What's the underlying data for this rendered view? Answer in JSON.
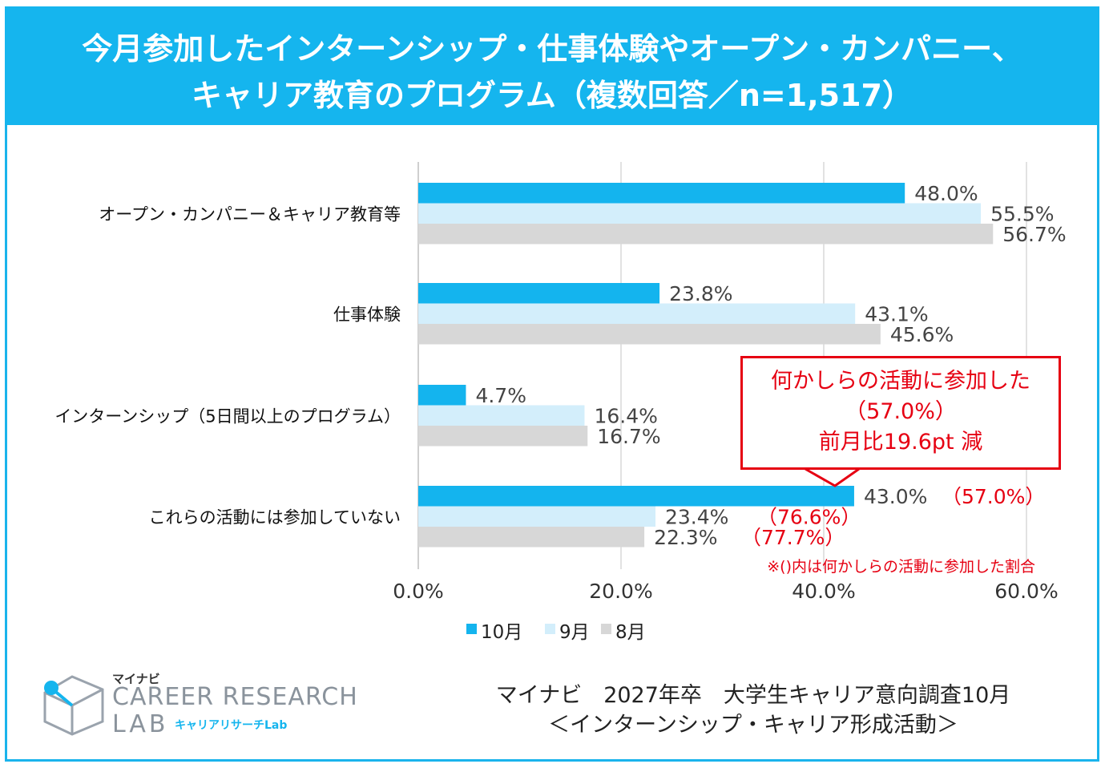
{
  "title": {
    "line1": "今月参加したインターンシップ・仕事体験やオープン・カンパニー、",
    "line2": "キャリア教育のプログラム（複数回答／n=1,517）"
  },
  "chart_data": {
    "type": "bar",
    "orientation": "horizontal",
    "categories": [
      "オープン・カンパニー＆キャリア教育等",
      "仕事体験",
      "インターンシップ（5日間以上のプログラム）",
      "これらの活動には参加していない"
    ],
    "series": [
      {
        "name": "10月",
        "color": "#14b4ee",
        "values": [
          48.0,
          23.8,
          4.7,
          43.0
        ],
        "labels": [
          "48.0%",
          "23.8%",
          "4.7%",
          "43.0%"
        ]
      },
      {
        "name": "9月",
        "color": "#d3eefb",
        "values": [
          55.5,
          43.1,
          16.4,
          23.4
        ],
        "labels": [
          "55.5%",
          "43.1%",
          "16.4%",
          "23.4%"
        ]
      },
      {
        "name": "8月",
        "color": "#d7d7d7",
        "values": [
          56.7,
          45.6,
          16.7,
          22.3
        ],
        "labels": [
          "56.7%",
          "45.6%",
          "16.7%",
          "22.3%"
        ]
      }
    ],
    "xlim": [
      0,
      60
    ],
    "xticks": [
      "0.0%",
      "20.0%",
      "40.0%",
      "60.0%"
    ],
    "grid": true,
    "legend": "bottom",
    "annotations": {
      "participated": [
        "（57.0%）",
        "（76.6%）",
        "（77.7%）"
      ],
      "note": "※()内は何かしらの活動に参加した割合"
    }
  },
  "callout": {
    "line1": "何かしらの活動に参加した",
    "line2": "（57.0%）",
    "line3": "前月比19.6pt 減"
  },
  "logo": {
    "brand": "マイナビ",
    "line1": "CAREER RESEARCH",
    "line2": "LAB",
    "sub": "キャリアリサーチLab"
  },
  "source": {
    "line1": "マイナビ　2027年卒　大学生キャリア意向調査10月",
    "line2": "＜インターンシップ・キャリア形成活動＞"
  },
  "colors": {
    "accent": "#15b5ee",
    "red": "#e60012"
  }
}
